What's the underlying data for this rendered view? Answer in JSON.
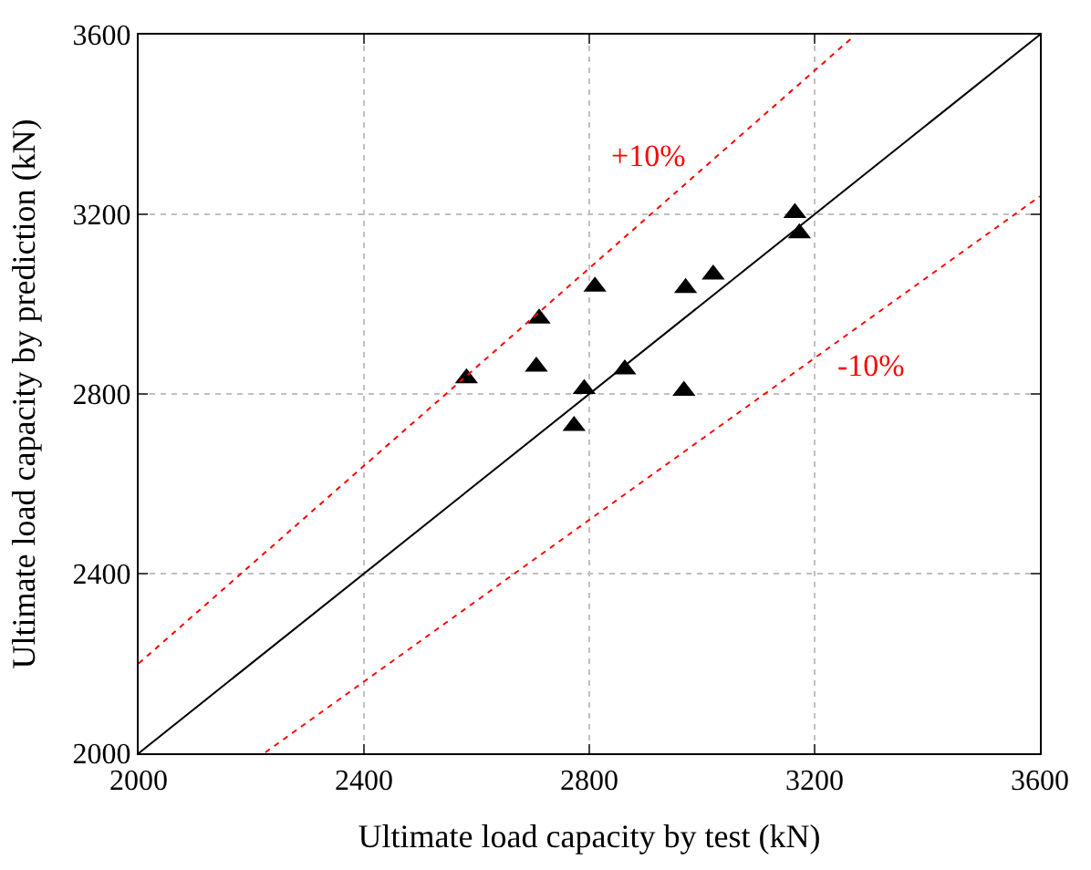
{
  "chart_data": {
    "type": "scatter",
    "xlabel": "Ultimate load capacity by test (kN)",
    "ylabel": "Ultimate load capacity by prediction (kN)",
    "x": [
      2582,
      2711,
      2706,
      2810,
      2791,
      2773,
      2863,
      2968,
      2971,
      3020,
      3165,
      3173
    ],
    "series": [
      {
        "color": "#000000",
        "marker": "triangle",
        "values": [
          2835,
          2968,
          2861,
          3039,
          2811,
          2729,
          2855,
          2807,
          3036,
          3066,
          3203,
          3158
        ]
      },
      {
        "type": "line",
        "color": "#000000",
        "line_style": "solid",
        "marker": "none",
        "x": [
          2000,
          3600
        ],
        "values": [
          2000,
          3600
        ]
      },
      {
        "type": "line",
        "color": "#ff0000",
        "line_style": "dotted",
        "marker": "none",
        "x": [
          2000,
          3270
        ],
        "values": [
          2200,
          3597
        ]
      },
      {
        "type": "line",
        "color": "#ff0000",
        "line_style": "dotted",
        "marker": "none",
        "x": [
          2225,
          3600
        ],
        "values": [
          2002,
          3240
        ]
      }
    ],
    "annotations": [
      "+10%",
      "-10%"
    ],
    "xlim": [
      2000,
      3600
    ],
    "ylim": [
      2000,
      3600
    ],
    "xticks": [
      2000,
      2400,
      2800,
      3200,
      3600
    ],
    "yticks": [
      2000,
      2400,
      2800,
      3200,
      3600
    ],
    "grid": true
  }
}
